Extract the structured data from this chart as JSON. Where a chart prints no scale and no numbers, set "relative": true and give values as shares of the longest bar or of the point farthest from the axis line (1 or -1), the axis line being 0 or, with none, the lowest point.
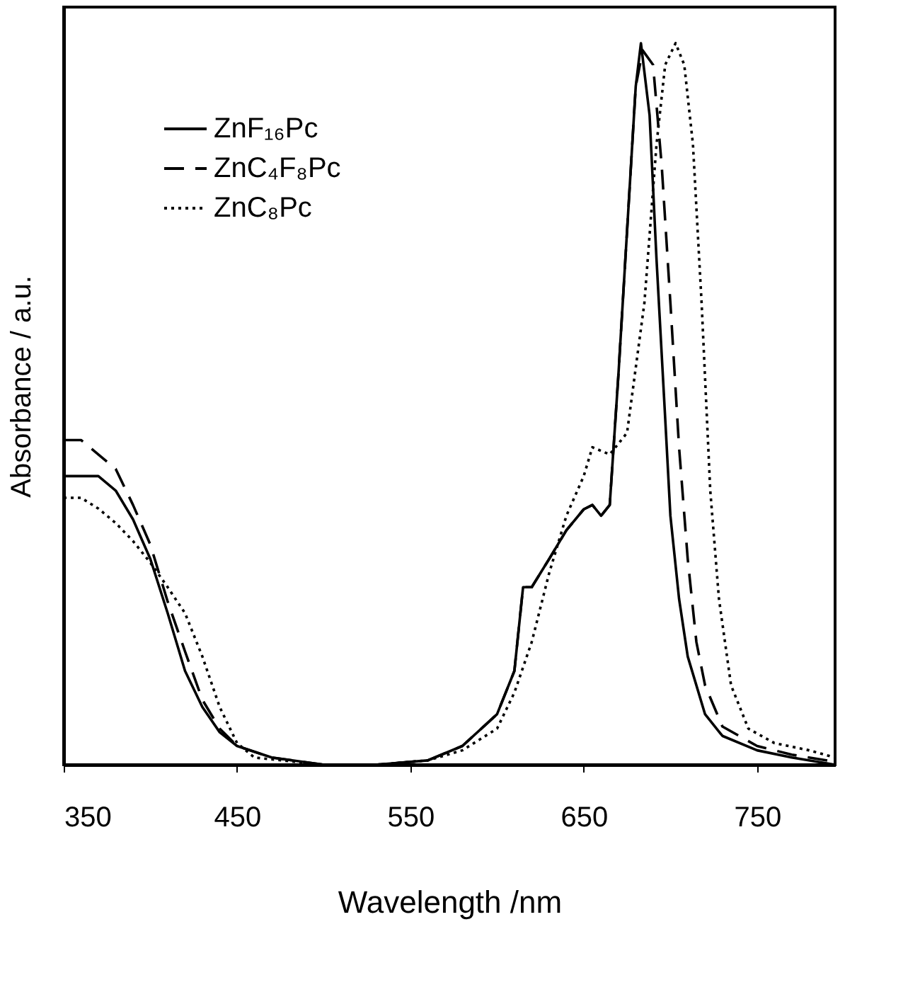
{
  "chart_data": {
    "type": "line",
    "xlabel": "Wavelength /nm",
    "ylabel": "Absorbance / a.u.",
    "relative": true,
    "xlim": [
      350,
      795
    ],
    "xticks": [
      350,
      450,
      550,
      650,
      750
    ],
    "grid": false,
    "legend": "top left",
    "marker": "none",
    "series": [
      {
        "name": "ZnF₁₆Pc",
        "color": "#000000",
        "line_style": "solid",
        "x": [
          350,
          360,
          370,
          380,
          390,
          400,
          410,
          420,
          430,
          440,
          450,
          470,
          500,
          530,
          560,
          580,
          600,
          610,
          615,
          620,
          630,
          640,
          650,
          655,
          660,
          665,
          670,
          675,
          680,
          683,
          688,
          692,
          697,
          700,
          705,
          710,
          720,
          730,
          750,
          770,
          795
        ],
        "values": [
          0.4,
          0.4,
          0.4,
          0.38,
          0.34,
          0.285,
          0.21,
          0.13,
          0.08,
          0.045,
          0.026,
          0.01,
          0,
          0,
          0.006,
          0.026,
          0.07,
          0.13,
          0.246,
          0.246,
          0.285,
          0.325,
          0.354,
          0.36,
          0.345,
          0.36,
          0.54,
          0.74,
          0.94,
          1.0,
          0.9,
          0.7,
          0.48,
          0.345,
          0.23,
          0.15,
          0.07,
          0.04,
          0.02,
          0.01,
          0
        ]
      },
      {
        "name": "ZnC₄F₈Pc",
        "color": "#000000",
        "line_style": "dashed",
        "x": [
          350,
          360,
          370,
          380,
          390,
          400,
          410,
          420,
          430,
          440,
          450,
          470,
          500,
          530,
          560,
          580,
          600,
          610,
          615,
          620,
          630,
          640,
          650,
          655,
          660,
          665,
          670,
          675,
          680,
          684,
          690,
          695,
          700,
          705,
          710,
          715,
          720,
          730,
          750,
          770,
          795
        ],
        "values": [
          0.45,
          0.45,
          0.43,
          0.41,
          0.36,
          0.305,
          0.226,
          0.157,
          0.09,
          0.05,
          0.026,
          0.01,
          0,
          0,
          0.006,
          0.026,
          0.07,
          0.13,
          0.246,
          0.246,
          0.285,
          0.325,
          0.354,
          0.36,
          0.345,
          0.36,
          0.54,
          0.74,
          0.94,
          0.99,
          0.97,
          0.83,
          0.64,
          0.44,
          0.285,
          0.17,
          0.11,
          0.053,
          0.026,
          0.014,
          0.004
        ]
      },
      {
        "name": "ZnC₈Pc",
        "color": "#000000",
        "line_style": "dotted",
        "x": [
          350,
          360,
          370,
          380,
          390,
          400,
          410,
          420,
          430,
          440,
          450,
          460,
          500,
          530,
          560,
          580,
          600,
          610,
          620,
          630,
          640,
          650,
          655,
          665,
          675,
          685,
          692,
          697,
          703,
          708,
          713,
          718,
          723,
          728,
          735,
          745,
          760,
          780,
          795
        ],
        "values": [
          0.37,
          0.37,
          0.355,
          0.335,
          0.31,
          0.28,
          0.246,
          0.21,
          0.15,
          0.08,
          0.03,
          0.01,
          0,
          0,
          0.006,
          0.02,
          0.05,
          0.1,
          0.17,
          0.265,
          0.345,
          0.4,
          0.44,
          0.43,
          0.46,
          0.64,
          0.86,
          0.97,
          1.0,
          0.97,
          0.86,
          0.64,
          0.38,
          0.23,
          0.11,
          0.05,
          0.03,
          0.02,
          0.01
        ]
      }
    ]
  }
}
